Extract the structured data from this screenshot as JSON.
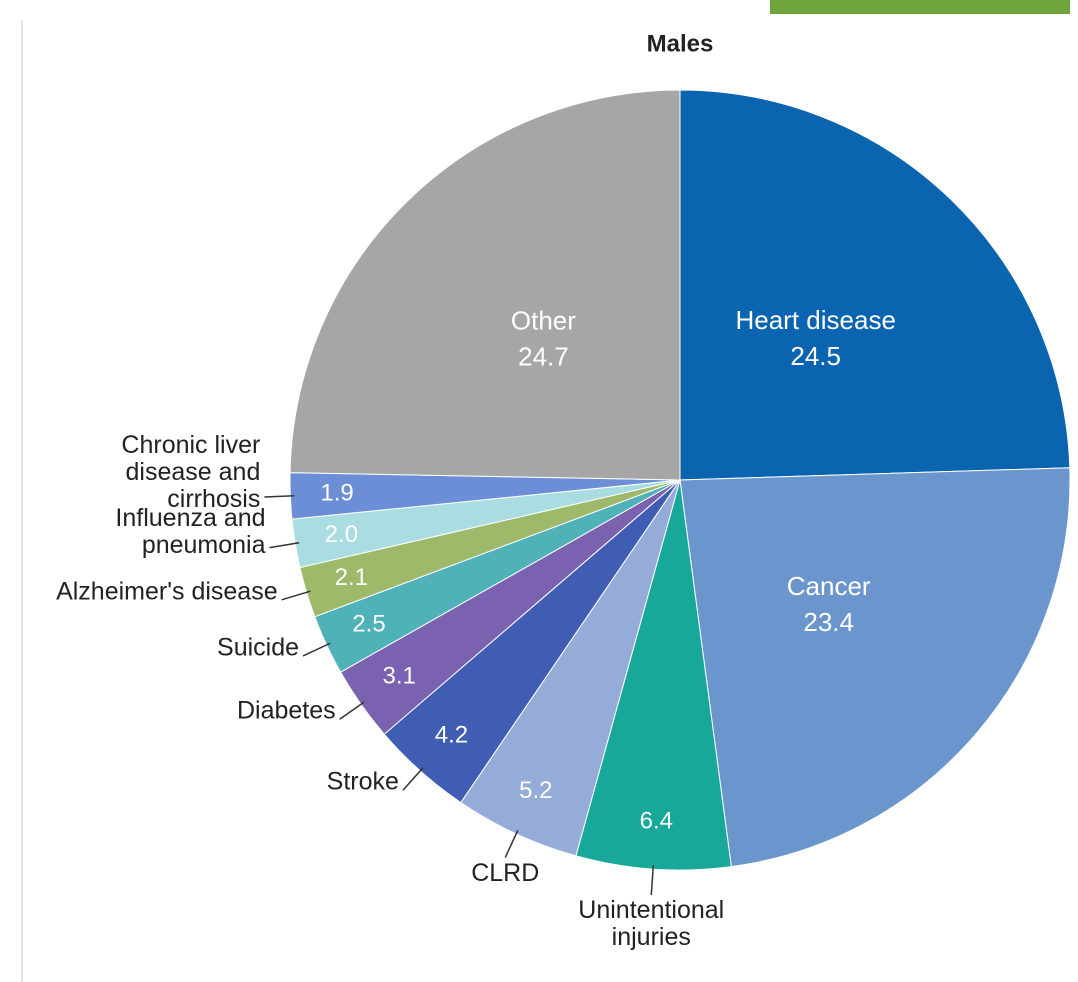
{
  "chart_data": {
    "type": "pie",
    "title": "Males",
    "categories": [
      "Heart disease",
      "Cancer",
      "Unintentional injuries",
      "CLRD",
      "Stroke",
      "Diabetes",
      "Suicide",
      "Alzheimer's disease",
      "Influenza and pneumonia",
      "Chronic liver disease and cirrhosis",
      "Other"
    ],
    "values": [
      24.5,
      23.4,
      6.4,
      5.2,
      4.2,
      3.1,
      2.5,
      2.1,
      2.0,
      1.9,
      24.7
    ],
    "value_labels": [
      "24.5",
      "23.4",
      "6.4",
      "5.2",
      "4.2",
      "3.1",
      "2.5",
      "2.1",
      "2.0",
      "1.9",
      "24.7"
    ],
    "colors": [
      "#0b64b0",
      "#6b96cd",
      "#17a899",
      "#95acd8",
      "#3e5db3",
      "#7a62b0",
      "#4fb2b8",
      "#9eb96a",
      "#a9dde1",
      "#6c8ed6",
      "#a6a6a6"
    ]
  }
}
